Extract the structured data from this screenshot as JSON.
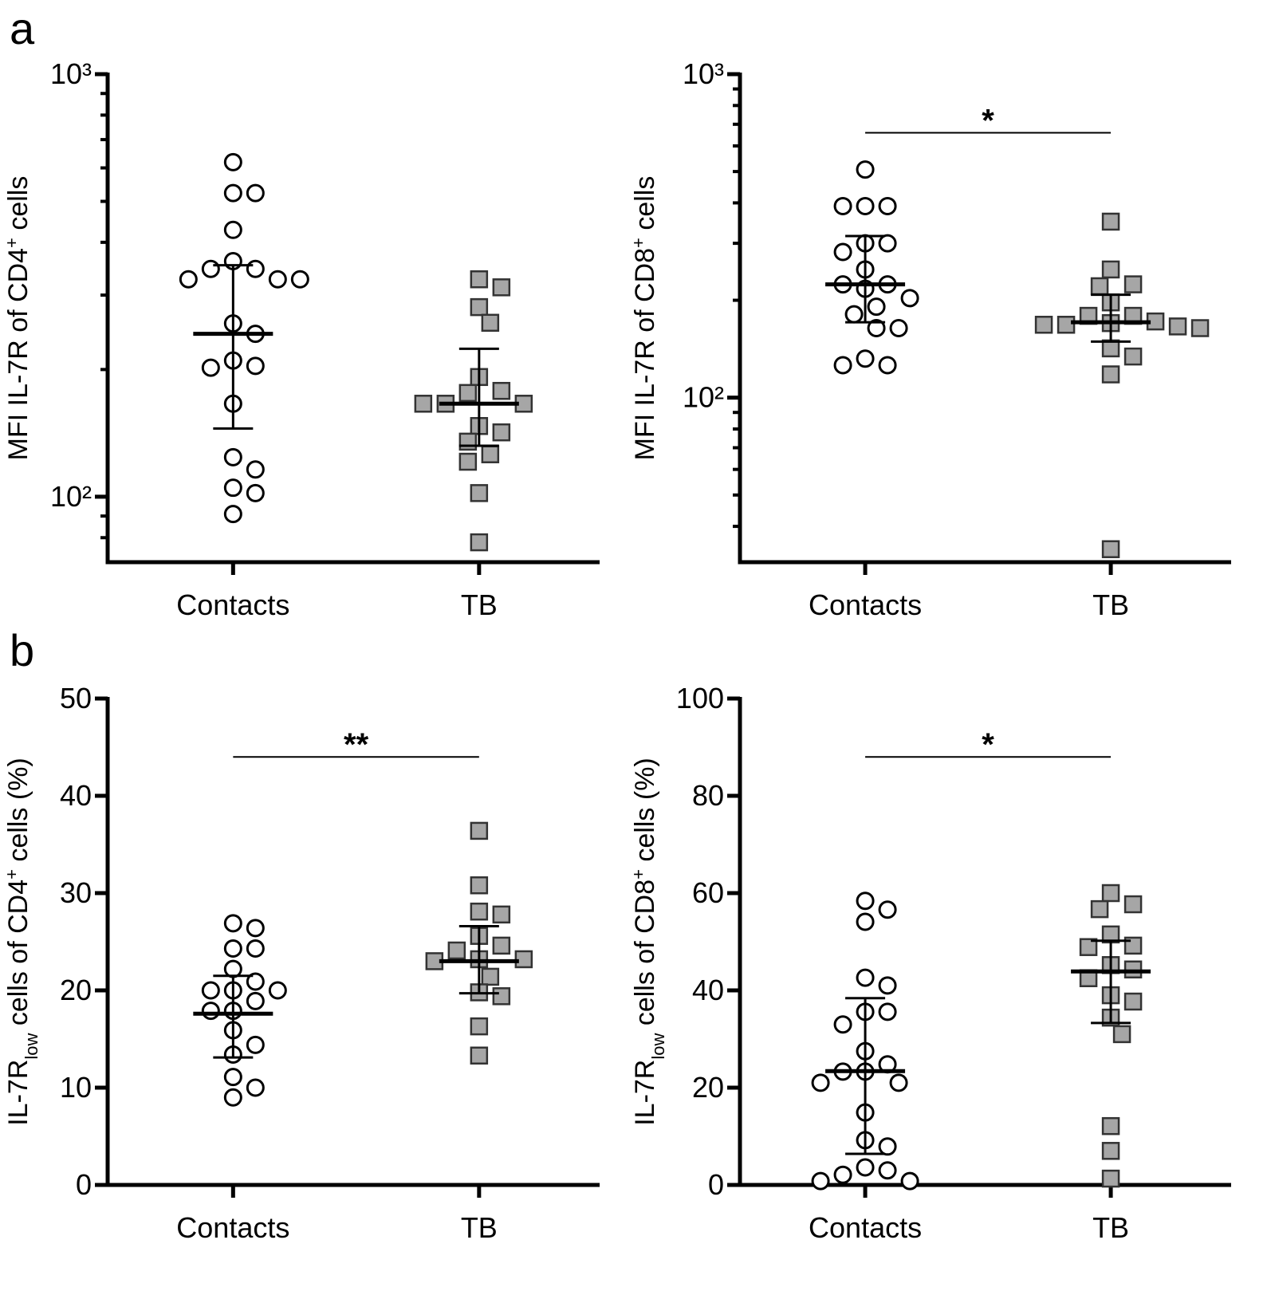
{
  "chart_data": [
    {
      "type": "dot",
      "panel_label": "a",
      "log_scale": true,
      "ylabel": [
        {
          "text": "MFI IL-7R of CD4",
          "shift": "none"
        },
        {
          "text": "+",
          "shift": "super"
        },
        {
          "text": " cells",
          "shift": "none"
        }
      ],
      "categories": [
        "Contacts",
        "TB"
      ],
      "ylim": [
        70,
        1000
      ],
      "yticks": [
        {
          "value": 100,
          "label": "10²"
        },
        {
          "value": 1000,
          "label": "10³"
        }
      ],
      "yminor": [
        80,
        90,
        200,
        300,
        400,
        500,
        600,
        700,
        800,
        900
      ],
      "groups": [
        {
          "marker": "circle",
          "color": "#ffffff",
          "values": [
            619,
            523,
            523,
            428,
            361,
            346,
            346,
            327,
            327,
            327,
            257,
            243,
            210,
            204,
            202,
            166,
            124,
            116,
            105,
            102,
            91
          ],
          "center": 243,
          "error_low": 145,
          "error_high": 353
        },
        {
          "marker": "square",
          "color": "#a6a6a6",
          "values": [
            327,
            313,
            281,
            258,
            192,
            178,
            176,
            166,
            166,
            166,
            147,
            142,
            135,
            126,
            121,
            102,
            78
          ],
          "center": 166,
          "error_low": 132,
          "error_high": 224
        }
      ]
    },
    {
      "type": "dot",
      "log_scale": true,
      "ylabel": [
        {
          "text": "MFI IL-7R of CD8",
          "shift": "none"
        },
        {
          "text": "+",
          "shift": "super"
        },
        {
          "text": " cells",
          "shift": "none"
        }
      ],
      "categories": [
        "Contacts",
        "TB"
      ],
      "ylim": [
        31,
        1000
      ],
      "yticks": [
        {
          "value": 100,
          "label": "10²"
        },
        {
          "value": 1000,
          "label": "10³"
        }
      ],
      "yminor": [
        40,
        50,
        60,
        70,
        80,
        90,
        200,
        300,
        400,
        500,
        600,
        700,
        800,
        900
      ],
      "annotation": "*",
      "groups": [
        {
          "marker": "circle",
          "color": "#ffffff",
          "values": [
            507,
            391,
            391,
            391,
            300,
            300,
            282,
            249,
            224,
            224,
            217,
            203,
            191,
            181,
            164,
            164,
            132,
            126,
            126
          ],
          "center": 224,
          "error_low": 171,
          "error_high": 316
        },
        {
          "marker": "square",
          "color": "#a6a6a6",
          "values": [
            350,
            249,
            224,
            221,
            197,
            179,
            179,
            172,
            170,
            168,
            166,
            168,
            164,
            142,
            134,
            118,
            34
          ],
          "center": 171,
          "error_low": 149,
          "error_high": 208
        }
      ]
    },
    {
      "type": "dot",
      "panel_label": "b",
      "log_scale": false,
      "ylabel": [
        {
          "text": "IL-7R",
          "shift": "none"
        },
        {
          "text": "low",
          "shift": "sub"
        },
        {
          "text": " cells of CD4",
          "shift": "none"
        },
        {
          "text": "+",
          "shift": "super"
        },
        {
          "text": " cells (%)",
          "shift": "none"
        }
      ],
      "categories": [
        "Contacts",
        "TB"
      ],
      "ylim": [
        0,
        50
      ],
      "yticks": [
        0,
        10,
        20,
        30,
        40,
        50
      ],
      "annotation": "**",
      "groups": [
        {
          "marker": "circle",
          "color": "#ffffff",
          "values": [
            26.9,
            26.4,
            24.3,
            24.3,
            22.2,
            20.9,
            20.0,
            20.0,
            20.0,
            18.9,
            17.9,
            17.9,
            15.9,
            14.4,
            13.4,
            11.1,
            10.0,
            9.0
          ],
          "center": 17.6,
          "error_low": 13.1,
          "error_high": 21.5
        },
        {
          "marker": "square",
          "color": "#a6a6a6",
          "values": [
            36.4,
            30.8,
            28.1,
            27.8,
            25.6,
            24.6,
            24.1,
            23.2,
            23.2,
            23.0,
            21.4,
            19.8,
            19.4,
            16.3,
            13.3
          ],
          "center": 23.0,
          "error_low": 19.7,
          "error_high": 26.6
        }
      ]
    },
    {
      "type": "dot",
      "log_scale": false,
      "ylabel": [
        {
          "text": "IL-7R",
          "shift": "none"
        },
        {
          "text": "low",
          "shift": "sub"
        },
        {
          "text": " cells of CD8",
          "shift": "none"
        },
        {
          "text": "+",
          "shift": "super"
        },
        {
          "text": " cells (%)",
          "shift": "none"
        }
      ],
      "categories": [
        "Contacts",
        "TB"
      ],
      "ylim": [
        0,
        100
      ],
      "yticks": [
        0,
        20,
        40,
        60,
        80,
        100
      ],
      "annotation": "*",
      "groups": [
        {
          "marker": "circle",
          "color": "#ffffff",
          "values": [
            58.4,
            56.6,
            54.1,
            42.6,
            41.0,
            35.6,
            35.6,
            33.0,
            27.5,
            24.8,
            23.3,
            23.3,
            21.0,
            21.0,
            14.9,
            9.2,
            7.9,
            3.6,
            3.0,
            2.1,
            0.8,
            0.8
          ],
          "center": 23.4,
          "error_low": 6.4,
          "error_high": 38.4
        },
        {
          "marker": "square",
          "color": "#a6a6a6",
          "values": [
            60.0,
            57.7,
            56.7,
            51.5,
            49.2,
            48.9,
            45.2,
            44.3,
            42.5,
            39.0,
            37.7,
            34.4,
            31.0,
            12.1,
            7.0,
            1.3
          ],
          "center": 43.9,
          "error_low": 33.3,
          "error_high": 50.2
        }
      ]
    }
  ]
}
